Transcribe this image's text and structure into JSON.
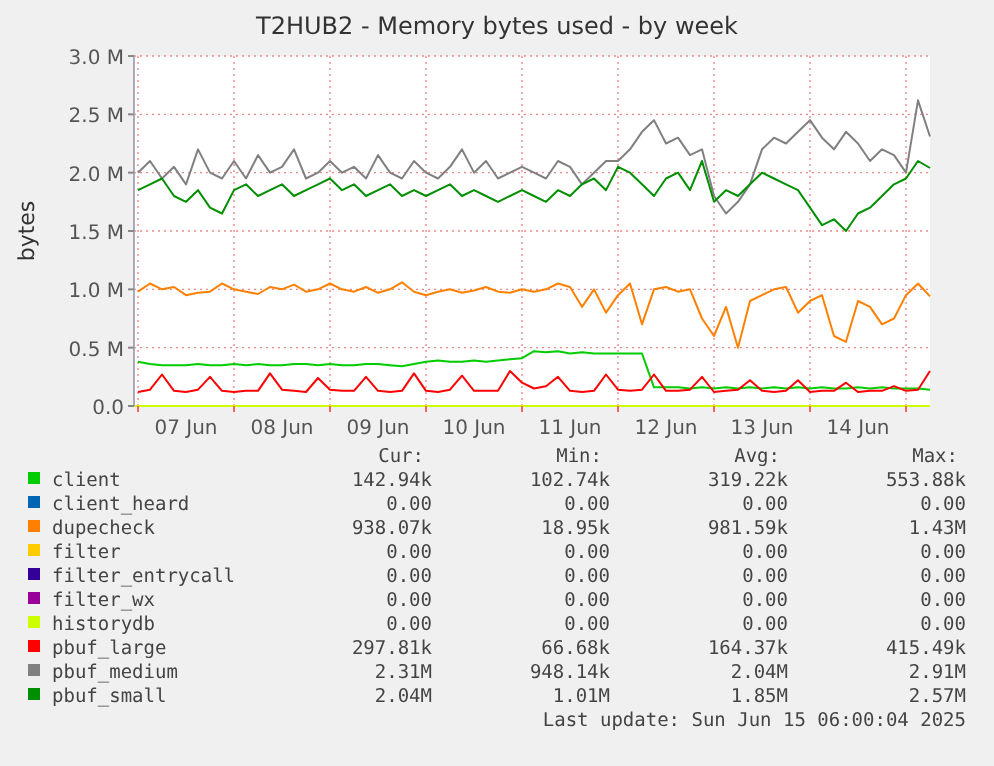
{
  "chart_data": {
    "type": "line",
    "title": "T2HUB2 - Memory bytes used - by week",
    "ylabel": "bytes",
    "grid": true,
    "legend": "bottom",
    "xlim": [
      "2025-06-06T23:00",
      "2025-06-15T06:00"
    ],
    "xticks": [
      {
        "value": "2025-06-07T00:00",
        "label": null
      },
      {
        "value": "2025-06-07T12:00",
        "label": "07 Jun"
      },
      {
        "value": "2025-06-08T00:00",
        "label": null
      },
      {
        "value": "2025-06-08T12:00",
        "label": "08 Jun"
      },
      {
        "value": "2025-06-09T00:00",
        "label": null
      },
      {
        "value": "2025-06-09T12:00",
        "label": "09 Jun"
      },
      {
        "value": "2025-06-10T00:00",
        "label": null
      },
      {
        "value": "2025-06-10T12:00",
        "label": "10 Jun"
      },
      {
        "value": "2025-06-11T00:00",
        "label": null
      },
      {
        "value": "2025-06-11T12:00",
        "label": "11 Jun"
      },
      {
        "value": "2025-06-12T00:00",
        "label": null
      },
      {
        "value": "2025-06-12T12:00",
        "label": "12 Jun"
      },
      {
        "value": "2025-06-13T00:00",
        "label": null
      },
      {
        "value": "2025-06-13T12:00",
        "label": "13 Jun"
      },
      {
        "value": "2025-06-14T00:00",
        "label": null
      },
      {
        "value": "2025-06-14T12:00",
        "label": "14 Jun"
      },
      {
        "value": "2025-06-15T00:00",
        "label": null
      }
    ],
    "ylim": [
      0,
      3
    ],
    "yticks": [
      {
        "value": 0,
        "label": "0.0"
      },
      {
        "value": 0.5,
        "label": "0.5 M"
      },
      {
        "value": 1,
        "label": "1.0 M"
      },
      {
        "value": 1.5,
        "label": "1.5 M"
      },
      {
        "value": 2,
        "label": "2.0 M"
      },
      {
        "value": 2.5,
        "label": "2.5 M"
      },
      {
        "value": 3,
        "label": "3.0 M"
      }
    ],
    "x": [
      "2025-06-07T00:00",
      "2025-06-07T03:00",
      "2025-06-07T06:00",
      "2025-06-07T09:00",
      "2025-06-07T12:00",
      "2025-06-07T15:00",
      "2025-06-07T18:00",
      "2025-06-07T21:00",
      "2025-06-08T00:00",
      "2025-06-08T03:00",
      "2025-06-08T06:00",
      "2025-06-08T09:00",
      "2025-06-08T12:00",
      "2025-06-08T15:00",
      "2025-06-08T18:00",
      "2025-06-08T21:00",
      "2025-06-09T00:00",
      "2025-06-09T03:00",
      "2025-06-09T06:00",
      "2025-06-09T09:00",
      "2025-06-09T12:00",
      "2025-06-09T15:00",
      "2025-06-09T18:00",
      "2025-06-09T21:00",
      "2025-06-10T00:00",
      "2025-06-10T03:00",
      "2025-06-10T06:00",
      "2025-06-10T09:00",
      "2025-06-10T12:00",
      "2025-06-10T15:00",
      "2025-06-10T18:00",
      "2025-06-10T21:00",
      "2025-06-11T00:00",
      "2025-06-11T03:00",
      "2025-06-11T06:00",
      "2025-06-11T09:00",
      "2025-06-11T12:00",
      "2025-06-11T15:00",
      "2025-06-11T18:00",
      "2025-06-11T21:00",
      "2025-06-12T00:00",
      "2025-06-12T03:00",
      "2025-06-12T06:00",
      "2025-06-12T09:00",
      "2025-06-12T12:00",
      "2025-06-12T15:00",
      "2025-06-12T18:00",
      "2025-06-12T21:00",
      "2025-06-13T00:00",
      "2025-06-13T03:00",
      "2025-06-13T06:00",
      "2025-06-13T09:00",
      "2025-06-13T12:00",
      "2025-06-13T15:00",
      "2025-06-13T18:00",
      "2025-06-13T21:00",
      "2025-06-14T00:00",
      "2025-06-14T03:00",
      "2025-06-14T06:00",
      "2025-06-14T09:00",
      "2025-06-14T12:00",
      "2025-06-14T15:00",
      "2025-06-14T18:00",
      "2025-06-14T21:00",
      "2025-06-15T00:00",
      "2025-06-15T03:00",
      "2025-06-15T06:00"
    ],
    "series": [
      {
        "name": "client",
        "color": "#00cc00",
        "values": [
          0.38,
          0.36,
          0.35,
          0.35,
          0.35,
          0.36,
          0.35,
          0.35,
          0.36,
          0.35,
          0.36,
          0.35,
          0.35,
          0.36,
          0.36,
          0.35,
          0.36,
          0.35,
          0.35,
          0.36,
          0.36,
          0.35,
          0.34,
          0.36,
          0.38,
          0.39,
          0.38,
          0.38,
          0.39,
          0.38,
          0.39,
          0.4,
          0.41,
          0.47,
          0.46,
          0.47,
          0.45,
          0.46,
          0.45,
          0.45,
          0.45,
          0.45,
          0.45,
          0.16,
          0.16,
          0.16,
          0.15,
          0.16,
          0.15,
          0.16,
          0.15,
          0.16,
          0.15,
          0.16,
          0.15,
          0.16,
          0.15,
          0.16,
          0.15,
          0.15,
          0.16,
          0.15,
          0.16,
          0.15,
          0.15,
          0.15,
          0.14
        ]
      },
      {
        "name": "client_heard",
        "color": "#0066b3",
        "values": [
          null,
          null,
          null,
          null,
          null,
          null,
          null,
          null,
          null,
          null,
          null,
          null,
          null,
          null,
          null,
          null,
          null,
          null,
          null,
          null,
          null,
          null,
          null,
          null,
          null,
          null,
          null,
          null,
          null,
          null,
          null,
          null,
          null,
          null,
          null,
          null,
          null,
          null,
          null,
          null,
          null,
          null,
          null,
          null,
          null,
          null,
          null,
          null,
          null,
          null,
          null,
          null,
          null,
          null,
          null,
          null,
          null,
          null,
          null,
          null,
          null,
          null,
          null,
          null,
          null,
          null,
          null
        ]
      },
      {
        "name": "dupecheck",
        "color": "#ff8000",
        "values": [
          0.98,
          1.05,
          1,
          1.02,
          0.95,
          0.97,
          0.98,
          1.05,
          1,
          0.98,
          0.96,
          1.02,
          1,
          1.04,
          0.98,
          1,
          1.05,
          1,
          0.98,
          1.02,
          0.97,
          1,
          1.06,
          0.98,
          0.95,
          0.98,
          1,
          0.97,
          0.99,
          1.02,
          0.98,
          0.97,
          1,
          0.98,
          1,
          1.05,
          1.02,
          0.85,
          1,
          0.8,
          0.95,
          1.05,
          0.7,
          1,
          1.02,
          0.98,
          1,
          0.75,
          0.6,
          0.85,
          0.5,
          0.9,
          0.95,
          1,
          1.02,
          0.8,
          0.9,
          0.95,
          0.6,
          0.55,
          0.9,
          0.85,
          0.7,
          0.75,
          0.95,
          1.05,
          0.94
        ]
      },
      {
        "name": "filter",
        "color": "#ffcc00",
        "values": [
          null,
          null,
          null,
          null,
          null,
          null,
          null,
          null,
          null,
          null,
          null,
          null,
          null,
          null,
          null,
          null,
          null,
          null,
          null,
          null,
          null,
          null,
          null,
          null,
          null,
          null,
          null,
          null,
          null,
          null,
          null,
          null,
          null,
          null,
          null,
          null,
          null,
          null,
          null,
          null,
          null,
          null,
          null,
          null,
          null,
          null,
          null,
          null,
          null,
          null,
          null,
          null,
          null,
          null,
          null,
          null,
          null,
          null,
          null,
          null,
          null,
          null,
          null,
          null,
          null,
          null,
          null
        ]
      },
      {
        "name": "filter_entrycall",
        "color": "#330099",
        "values": [
          null,
          null,
          null,
          null,
          null,
          null,
          null,
          null,
          null,
          null,
          null,
          null,
          null,
          null,
          null,
          null,
          null,
          null,
          null,
          null,
          null,
          null,
          null,
          null,
          null,
          null,
          null,
          null,
          null,
          null,
          null,
          null,
          null,
          null,
          null,
          null,
          null,
          null,
          null,
          null,
          null,
          null,
          null,
          null,
          null,
          null,
          null,
          null,
          null,
          null,
          null,
          null,
          null,
          null,
          null,
          null,
          null,
          null,
          null,
          null,
          null,
          null,
          null,
          null,
          null,
          null,
          null
        ]
      },
      {
        "name": "filter_wx",
        "color": "#990099",
        "values": [
          null,
          null,
          null,
          null,
          null,
          null,
          null,
          null,
          null,
          null,
          null,
          null,
          null,
          null,
          null,
          null,
          null,
          null,
          null,
          null,
          null,
          null,
          null,
          null,
          null,
          null,
          null,
          null,
          null,
          null,
          null,
          null,
          null,
          null,
          null,
          null,
          null,
          null,
          null,
          null,
          null,
          null,
          null,
          null,
          null,
          null,
          null,
          null,
          null,
          null,
          null,
          null,
          null,
          null,
          null,
          null,
          null,
          null,
          null,
          null,
          null,
          null,
          null,
          null,
          null,
          null,
          null
        ]
      },
      {
        "name": "historydb",
        "color": "#ccff00",
        "x": [
          "2025-06-06T23:00",
          "2025-06-15T06:00"
        ],
        "values": [
          0,
          0
        ]
      },
      {
        "name": "pbuf_large",
        "color": "#ff0000",
        "values": [
          0.12,
          0.14,
          0.27,
          0.13,
          0.12,
          0.14,
          0.25,
          0.13,
          0.12,
          0.13,
          0.13,
          0.28,
          0.14,
          0.13,
          0.12,
          0.24,
          0.14,
          0.13,
          0.13,
          0.25,
          0.13,
          0.12,
          0.13,
          0.28,
          0.13,
          0.12,
          0.14,
          0.26,
          0.13,
          0.13,
          0.13,
          0.3,
          0.2,
          0.15,
          0.17,
          0.25,
          0.13,
          0.12,
          0.13,
          0.27,
          0.14,
          0.13,
          0.14,
          0.27,
          0.13,
          0.13,
          0.14,
          0.25,
          0.12,
          0.13,
          0.14,
          0.22,
          0.13,
          0.12,
          0.13,
          0.22,
          0.12,
          0.13,
          0.13,
          0.2,
          0.12,
          0.13,
          0.13,
          0.17,
          0.13,
          0.14,
          0.3
        ]
      },
      {
        "name": "pbuf_medium",
        "color": "#808080",
        "values": [
          2,
          2.1,
          1.95,
          2.05,
          1.9,
          2.2,
          2,
          1.95,
          2.1,
          1.95,
          2.15,
          2,
          2.05,
          2.2,
          1.95,
          2,
          2.1,
          2,
          2.05,
          1.95,
          2.15,
          2,
          1.95,
          2.1,
          2,
          1.95,
          2.05,
          2.2,
          2,
          2.1,
          1.95,
          2,
          2.05,
          2,
          1.95,
          2.1,
          2.05,
          1.9,
          2,
          2.1,
          2.1,
          2.2,
          2.35,
          2.45,
          2.25,
          2.3,
          2.15,
          2.2,
          1.8,
          1.65,
          1.75,
          1.9,
          2.2,
          2.3,
          2.25,
          2.35,
          2.45,
          2.3,
          2.2,
          2.35,
          2.25,
          2.1,
          2.2,
          2.15,
          2,
          2.62,
          2.31
        ]
      },
      {
        "name": "pbuf_small",
        "color": "#008f00",
        "values": [
          1.85,
          1.9,
          1.95,
          1.8,
          1.75,
          1.85,
          1.7,
          1.65,
          1.85,
          1.9,
          1.8,
          1.85,
          1.9,
          1.8,
          1.85,
          1.9,
          1.95,
          1.85,
          1.9,
          1.8,
          1.85,
          1.9,
          1.8,
          1.85,
          1.8,
          1.85,
          1.9,
          1.8,
          1.85,
          1.8,
          1.75,
          1.8,
          1.85,
          1.8,
          1.75,
          1.85,
          1.8,
          1.9,
          1.95,
          1.85,
          2.05,
          2,
          1.9,
          1.8,
          1.95,
          2,
          1.85,
          2.1,
          1.75,
          1.85,
          1.8,
          1.9,
          2,
          1.95,
          1.9,
          1.85,
          1.7,
          1.55,
          1.6,
          1.5,
          1.65,
          1.7,
          1.8,
          1.9,
          1.95,
          2.1,
          2.04
        ]
      }
    ],
    "annotations": [
      "Cur:",
      "Min:",
      "Avg:",
      "Max:",
      "142.94k",
      "102.74k",
      "319.22k",
      "553.88k",
      "0.00",
      "0.00",
      "0.00",
      "0.00",
      "938.07k",
      "18.95k",
      "981.59k",
      "1.43M",
      "0.00",
      "0.00",
      "0.00",
      "0.00",
      "0.00",
      "0.00",
      "0.00",
      "0.00",
      "0.00",
      "0.00",
      "0.00",
      "0.00",
      "0.00",
      "0.00",
      "0.00",
      "0.00",
      "297.81k",
      "66.68k",
      "164.37k",
      "415.49k",
      "2.31M",
      "948.14k",
      "2.04M",
      "2.91M",
      "2.04M",
      "1.01M",
      "1.85M",
      "2.57M",
      "Last update: Sun Jun 15 06:00:04 2025"
    ]
  }
}
